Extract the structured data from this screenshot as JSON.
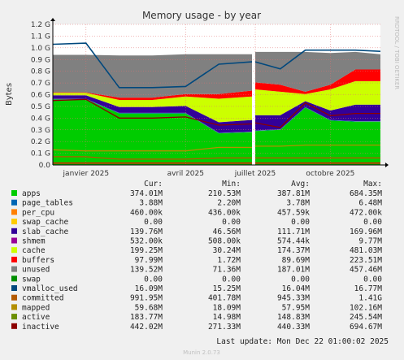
{
  "chart_data": {
    "type": "area",
    "title": "Memory usage - by year",
    "ylabel": "Bytes",
    "side_label": "RRDTOOL / TOBI OETIKER",
    "ylim": [
      0,
      1.2
    ],
    "yunit": "G",
    "yticks": [
      "0.0",
      "0.1 G",
      "0.2 G",
      "0.3 G",
      "0.4 G",
      "0.5 G",
      "0.6 G",
      "0.7 G",
      "0.8 G",
      "0.9 G",
      "1.0 G",
      "1.1 G",
      "1.2 G"
    ],
    "xticks": [
      "janvier 2025",
      "avril 2025",
      "juillet 2025",
      "octobre 2025"
    ],
    "x": [
      "2024-12",
      "2025-01",
      "2025-02",
      "2025-03",
      "2025-04",
      "2025-05",
      "2025-06",
      "2025-07",
      "2025-08",
      "2025-09",
      "2025-10",
      "2025-11",
      "2025-12"
    ],
    "gap": {
      "from": "2025-07",
      "to": "2025-07"
    },
    "grid": true,
    "stack_order": [
      "apps",
      "page_tables",
      "per_cpu",
      "swap_cache",
      "slab_cache",
      "shmem",
      "cache",
      "buffers",
      "unused",
      "swap"
    ],
    "stacked_series": [
      {
        "name": "apps",
        "color": "#00cc00",
        "values": [
          0.56,
          0.56,
          0.44,
          0.44,
          0.44,
          0.27,
          0.28,
          0.29,
          0.3,
          0.49,
          0.38,
          0.37,
          0.37
        ]
      },
      {
        "name": "page_tables",
        "color": "#0066b3",
        "values": [
          0.004,
          0.004,
          0.004,
          0.004,
          0.004,
          0.004,
          0.004,
          0.004,
          0.004,
          0.004,
          0.004,
          0.004,
          0.004
        ]
      },
      {
        "name": "per_cpu",
        "color": "#ff8000",
        "values": [
          0.0005,
          0.0005,
          0.0005,
          0.0005,
          0.0005,
          0.0005,
          0.0005,
          0.0005,
          0.0005,
          0.0005,
          0.0005,
          0.0005,
          0.0005
        ]
      },
      {
        "name": "swap_cache",
        "color": "#ffcc00",
        "values": [
          0,
          0,
          0,
          0,
          0,
          0,
          0,
          0,
          0,
          0,
          0,
          0,
          0
        ]
      },
      {
        "name": "slab_cache",
        "color": "#330099",
        "values": [
          0.03,
          0.03,
          0.05,
          0.05,
          0.06,
          0.09,
          0.1,
          0.13,
          0.12,
          0.05,
          0.08,
          0.14,
          0.14
        ]
      },
      {
        "name": "shmem",
        "color": "#990099",
        "values": [
          0.0005,
          0.0005,
          0.0005,
          0.0005,
          0.0005,
          0.0005,
          0.0005,
          0.0005,
          0.0005,
          0.0005,
          0.0005,
          0.0005,
          0.0005
        ]
      },
      {
        "name": "cache",
        "color": "#ccff00",
        "values": [
          0.02,
          0.02,
          0.06,
          0.06,
          0.08,
          0.2,
          0.2,
          0.22,
          0.2,
          0.06,
          0.18,
          0.2,
          0.2
        ]
      },
      {
        "name": "buffers",
        "color": "#ff0000",
        "values": [
          0.005,
          0.005,
          0.02,
          0.02,
          0.02,
          0.04,
          0.05,
          0.06,
          0.06,
          0.02,
          0.04,
          0.1,
          0.1
        ]
      },
      {
        "name": "unused",
        "color": "#808080",
        "values": [
          0.32,
          0.32,
          0.36,
          0.36,
          0.34,
          0.34,
          0.31,
          0.26,
          0.28,
          0.34,
          0.27,
          0.15,
          0.13
        ]
      },
      {
        "name": "swap",
        "color": "#008f00",
        "values": [
          0,
          0,
          0,
          0,
          0,
          0,
          0,
          0,
          0,
          0,
          0,
          0,
          0
        ]
      }
    ],
    "line_series": [
      {
        "name": "committed",
        "color": "#00487d",
        "values": [
          1.03,
          1.04,
          0.66,
          0.66,
          0.67,
          0.86,
          0.88,
          0.88,
          0.82,
          0.98,
          0.98,
          0.98,
          0.97
        ]
      },
      {
        "name": "inactive",
        "color": "#8c0000",
        "values": [
          0.55,
          0.56,
          0.4,
          0.4,
          0.41,
          0.34,
          0.35,
          0.36,
          0.32,
          0.53,
          0.42,
          0.44,
          0.44
        ]
      },
      {
        "name": "active",
        "color": "#b38f00",
        "values": [
          0.13,
          0.12,
          0.12,
          0.12,
          0.12,
          0.15,
          0.15,
          0.16,
          0.16,
          0.17,
          0.17,
          0.17,
          0.17
        ]
      },
      {
        "name": "mapped",
        "color": "#b35a00",
        "values": [
          0.07,
          0.07,
          0.05,
          0.05,
          0.05,
          0.06,
          0.06,
          0.06,
          0.06,
          0.06,
          0.06,
          0.06,
          0.06
        ]
      },
      {
        "name": "vmalloc_used",
        "color": "#ff0000",
        "values": [
          0.016,
          0.016,
          0.016,
          0.016,
          0.016,
          0.016,
          0.016,
          0.016,
          0.016,
          0.016,
          0.016,
          0.016,
          0.016
        ]
      }
    ],
    "legend": {
      "headers": [
        "Cur:",
        "Min:",
        "Avg:",
        "Max:"
      ],
      "rows": [
        {
          "name": "apps",
          "color": "#00cc00",
          "cur": "374.01M",
          "min": "210.53M",
          "avg": "387.81M",
          "max": "684.35M"
        },
        {
          "name": "page_tables",
          "color": "#0066b3",
          "cur": "3.88M",
          "min": "2.20M",
          "avg": "3.78M",
          "max": "6.48M"
        },
        {
          "name": "per_cpu",
          "color": "#ff8000",
          "cur": "460.00k",
          "min": "436.00k",
          "avg": "457.59k",
          "max": "472.00k"
        },
        {
          "name": "swap_cache",
          "color": "#ffcc00",
          "cur": "0.00",
          "min": "0.00",
          "avg": "0.00",
          "max": "0.00"
        },
        {
          "name": "slab_cache",
          "color": "#330099",
          "cur": "139.76M",
          "min": "46.56M",
          "avg": "111.71M",
          "max": "169.96M"
        },
        {
          "name": "shmem",
          "color": "#990099",
          "cur": "532.00k",
          "min": "508.00k",
          "avg": "574.44k",
          "max": "9.77M"
        },
        {
          "name": "cache",
          "color": "#ccff00",
          "cur": "199.25M",
          "min": "30.24M",
          "avg": "174.37M",
          "max": "481.03M"
        },
        {
          "name": "buffers",
          "color": "#ff0000",
          "cur": "97.99M",
          "min": "1.72M",
          "avg": "89.69M",
          "max": "223.51M"
        },
        {
          "name": "unused",
          "color": "#808080",
          "cur": "139.52M",
          "min": "71.36M",
          "avg": "187.01M",
          "max": "457.46M"
        },
        {
          "name": "swap",
          "color": "#008f00",
          "cur": "0.00",
          "min": "0.00",
          "avg": "0.00",
          "max": "0.00"
        },
        {
          "name": "vmalloc_used",
          "color": "#00487d",
          "cur": "16.09M",
          "min": "15.25M",
          "avg": "16.04M",
          "max": "16.77M"
        },
        {
          "name": "committed",
          "color": "#b35a00",
          "cur": "991.95M",
          "min": "401.78M",
          "avg": "945.33M",
          "max": "1.41G"
        },
        {
          "name": "mapped",
          "color": "#b38f00",
          "cur": "59.68M",
          "min": "18.09M",
          "avg": "57.95M",
          "max": "102.16M"
        },
        {
          "name": "active",
          "color": "#6b8f00",
          "cur": "183.77M",
          "min": "14.98M",
          "avg": "148.83M",
          "max": "245.54M"
        },
        {
          "name": "inactive",
          "color": "#8c0000",
          "cur": "442.02M",
          "min": "271.33M",
          "avg": "440.33M",
          "max": "694.67M"
        }
      ]
    },
    "last_update": "Last update: Mon Dec 22 01:00:02 2025",
    "footer": "Munin 2.0.73"
  }
}
